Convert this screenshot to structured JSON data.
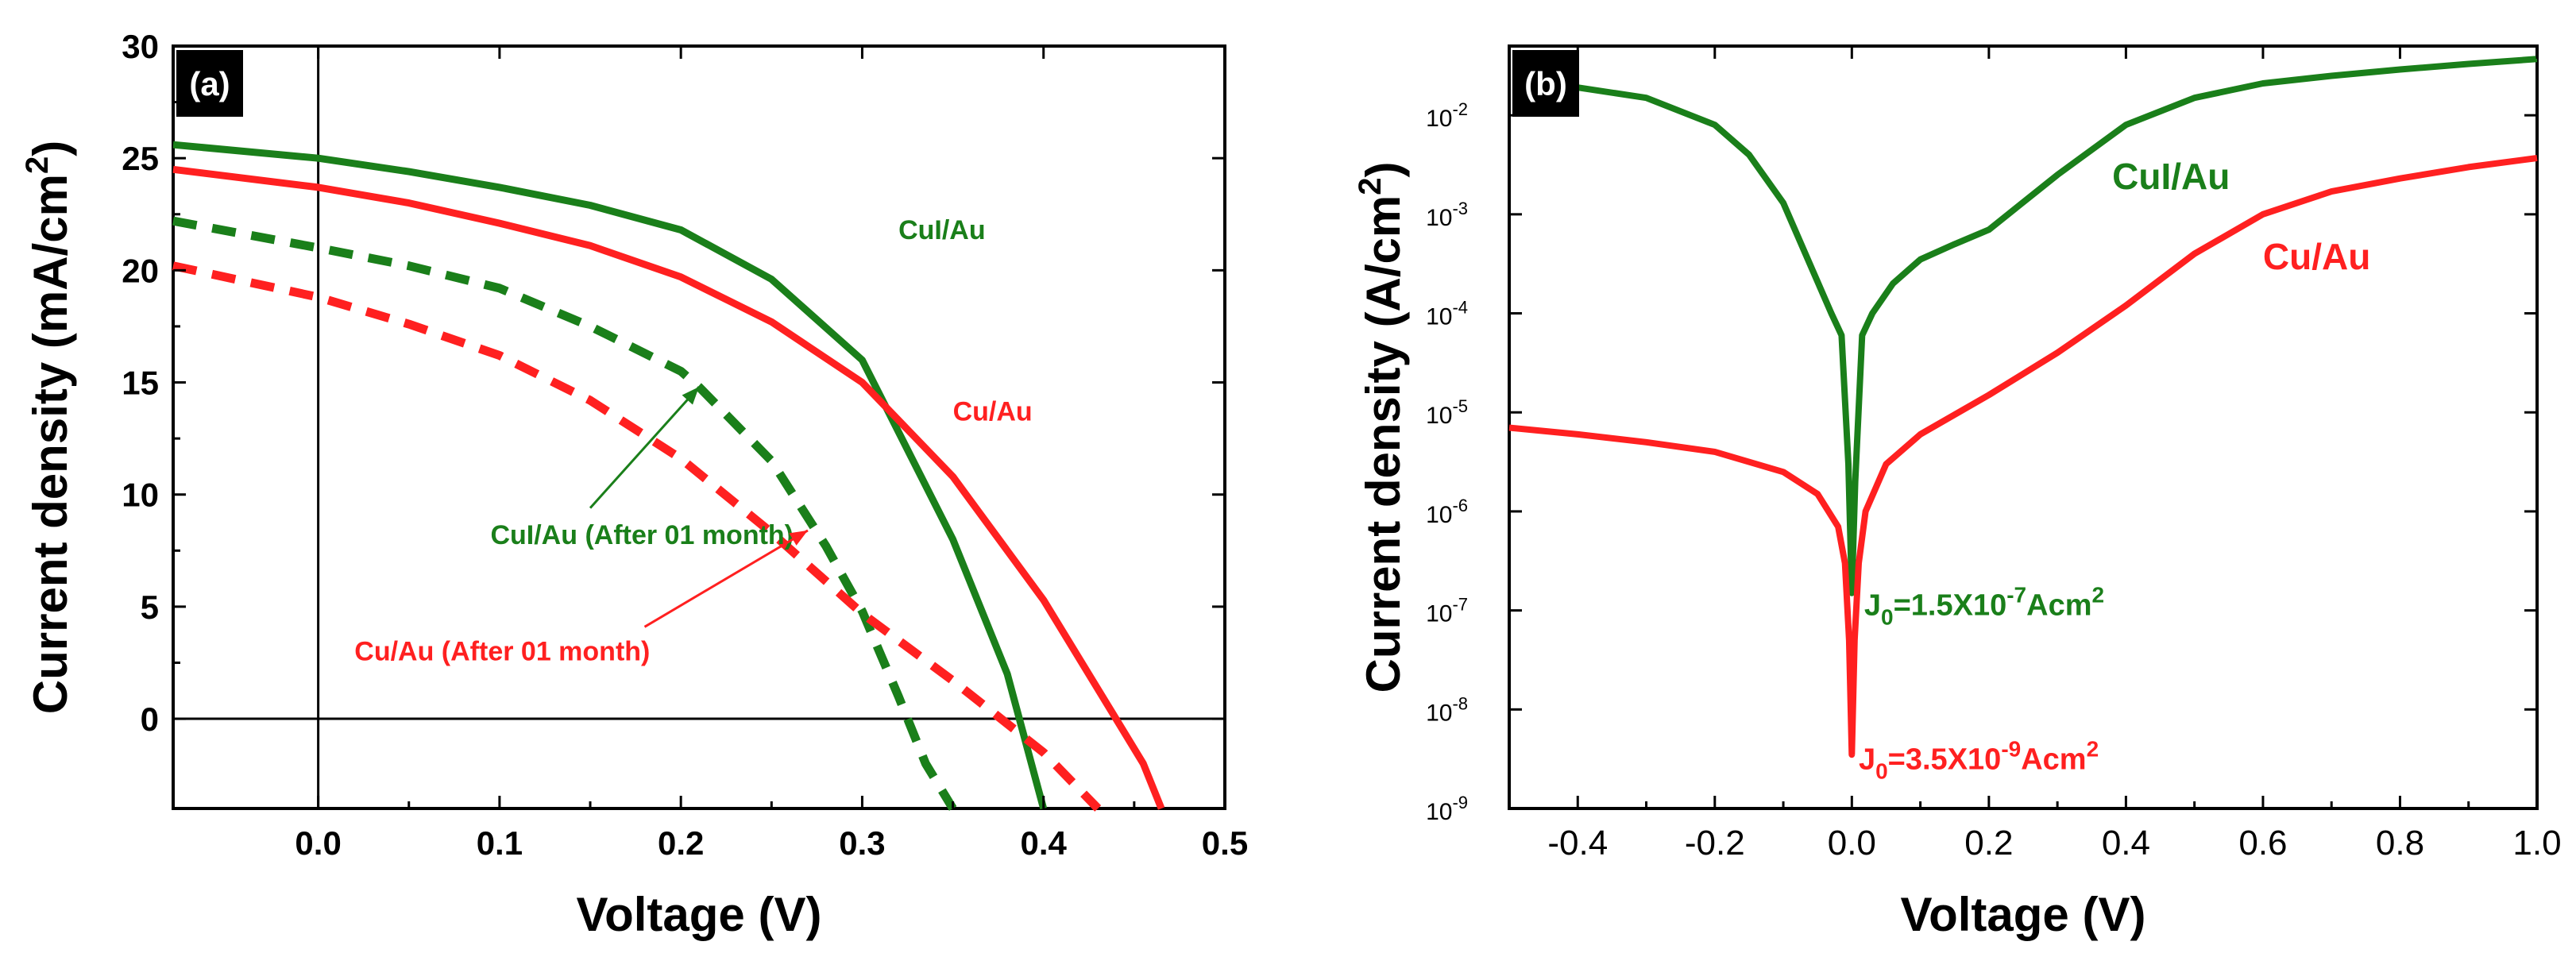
{
  "chart_data": [
    {
      "panel": "(a)",
      "type": "line",
      "xlabel": "Voltage (V)",
      "ylabel_main": "Current density (mA/cm",
      "ylabel_sup": "2",
      "ylabel_tail": ")",
      "xlim": [
        -0.08,
        0.5
      ],
      "ylim": [
        -4,
        30
      ],
      "xticks": [
        0.0,
        0.1,
        0.2,
        0.3,
        0.4,
        0.5
      ],
      "xtick_labels": [
        "0.0",
        "0.1",
        "0.2",
        "0.3",
        "0.4",
        "0.5"
      ],
      "yticks": [
        0,
        5,
        10,
        15,
        20,
        25,
        30
      ],
      "ytick_labels": [
        "0",
        "5",
        "10",
        "15",
        "20",
        "25",
        "30"
      ],
      "reference_lines": {
        "x0": 0,
        "y0": 0
      },
      "series": [
        {
          "name": "CuI/Au",
          "color": "#1a7f1a",
          "dashed": false,
          "x": [
            -0.08,
            0.0,
            0.05,
            0.1,
            0.15,
            0.2,
            0.25,
            0.3,
            0.35,
            0.38,
            0.4
          ],
          "y": [
            25.6,
            25.0,
            24.4,
            23.7,
            22.9,
            21.8,
            19.6,
            16.0,
            8.0,
            2.0,
            -4.0
          ]
        },
        {
          "name": "Cu/Au",
          "color": "#ff2020",
          "dashed": false,
          "x": [
            -0.08,
            0.0,
            0.05,
            0.1,
            0.15,
            0.2,
            0.25,
            0.3,
            0.35,
            0.4,
            0.44,
            0.455,
            0.465
          ],
          "y": [
            24.5,
            23.7,
            23.0,
            22.1,
            21.1,
            19.7,
            17.7,
            15.0,
            10.8,
            5.3,
            0.0,
            -2.0,
            -4.0
          ]
        },
        {
          "name": "CuI/Au (After 01 month)",
          "color": "#1a7f1a",
          "dashed": true,
          "x": [
            -0.08,
            0.0,
            0.05,
            0.1,
            0.15,
            0.2,
            0.21,
            0.25,
            0.28,
            0.3,
            0.32,
            0.335,
            0.35
          ],
          "y": [
            22.2,
            21.0,
            20.2,
            19.2,
            17.5,
            15.5,
            14.8,
            11.5,
            7.7,
            4.8,
            1.0,
            -2.0,
            -4.0
          ]
        },
        {
          "name": "Cu/Au (After 01 month)",
          "color": "#ff2020",
          "dashed": true,
          "x": [
            -0.08,
            0.0,
            0.05,
            0.1,
            0.15,
            0.2,
            0.25,
            0.3,
            0.35,
            0.4,
            0.43
          ],
          "y": [
            20.2,
            18.8,
            17.6,
            16.2,
            14.2,
            11.6,
            8.3,
            4.7,
            1.7,
            -1.5,
            -4.0
          ]
        }
      ],
      "annotations": [
        {
          "text": "CuI/Au",
          "color": "#1a7f1a",
          "at": [
            0.32,
            21.4
          ]
        },
        {
          "text": "Cu/Au",
          "color": "#ff2020",
          "at": [
            0.35,
            13.3
          ]
        },
        {
          "text": "CuI/Au (After 01 month)",
          "color": "#1a7f1a",
          "at": [
            0.095,
            7.8
          ],
          "arrow_from": [
            0.15,
            9.4
          ],
          "arrow_to": [
            0.21,
            14.8
          ]
        },
        {
          "text": "Cu/Au (After 01 month)",
          "color": "#ff2020",
          "at": [
            0.02,
            2.6
          ],
          "arrow_from": [
            0.18,
            4.1
          ],
          "arrow_to": [
            0.27,
            8.4
          ]
        }
      ]
    },
    {
      "panel": "(b)",
      "type": "line",
      "yscale": "log",
      "xlabel": "Voltage (V)",
      "ylabel_main": "Current density (A/cm",
      "ylabel_sup": "2",
      "ylabel_tail": ")",
      "xlim": [
        -0.5,
        1.0
      ],
      "ylim": [
        1e-09,
        0.05
      ],
      "xticks": [
        -0.4,
        -0.2,
        0.0,
        0.2,
        0.4,
        0.6,
        0.8,
        1.0
      ],
      "xtick_labels": [
        "-0.4",
        "-0.2",
        "0.0",
        "0.2",
        "0.4",
        "0.6",
        "0.8",
        "1.0"
      ],
      "yticks": [
        1e-09,
        1e-08,
        1e-07,
        1e-06,
        1e-05,
        0.0001,
        0.001,
        0.01
      ],
      "ytick_labels": [
        {
          "base": "10",
          "exp": "-9"
        },
        {
          "base": "10",
          "exp": "-8"
        },
        {
          "base": "10",
          "exp": "-7"
        },
        {
          "base": "10",
          "exp": "-6"
        },
        {
          "base": "10",
          "exp": "-5"
        },
        {
          "base": "10",
          "exp": "-4"
        },
        {
          "base": "10",
          "exp": "-3"
        },
        {
          "base": "10",
          "exp": "-2"
        }
      ],
      "series": [
        {
          "name": "CuI/Au",
          "color": "#1a7f1a",
          "x": [
            -0.42,
            -0.3,
            -0.2,
            -0.15,
            -0.1,
            -0.06,
            -0.03,
            -0.015,
            -0.005,
            0.0,
            0.005,
            0.015,
            0.03,
            0.06,
            0.1,
            0.15,
            0.2,
            0.3,
            0.4,
            0.5,
            0.6,
            0.7,
            0.8,
            0.9,
            1.0
          ],
          "y": [
            0.02,
            0.015,
            0.008,
            0.004,
            0.0013,
            0.0003,
            0.0001,
            6e-05,
            3e-06,
            1.5e-07,
            2e-06,
            6e-05,
            0.0001,
            0.0002,
            0.00035,
            0.0005,
            0.0007,
            0.0025,
            0.008,
            0.015,
            0.021,
            0.025,
            0.029,
            0.033,
            0.037
          ]
        },
        {
          "name": "Cu/Au",
          "color": "#ff2020",
          "x": [
            -0.5,
            -0.4,
            -0.3,
            -0.2,
            -0.1,
            -0.05,
            -0.02,
            -0.01,
            -0.004,
            0.0,
            0.004,
            0.01,
            0.02,
            0.05,
            0.1,
            0.2,
            0.3,
            0.4,
            0.5,
            0.6,
            0.7,
            0.8,
            0.9,
            1.0
          ],
          "y": [
            7e-06,
            6e-06,
            5e-06,
            4e-06,
            2.5e-06,
            1.5e-06,
            7e-07,
            3e-07,
            5e-08,
            3.5e-09,
            5e-08,
            3e-07,
            1e-06,
            3e-06,
            6e-06,
            1.5e-05,
            4e-05,
            0.00012,
            0.0004,
            0.001,
            0.0017,
            0.0023,
            0.003,
            0.0037
          ]
        }
      ],
      "annotations": [
        {
          "text": "CuI/Au",
          "color": "#1a7f1a",
          "at": [
            0.38,
            0.0018
          ]
        },
        {
          "text": "Cu/Au",
          "color": "#ff2020",
          "at": [
            0.6,
            0.00028
          ]
        },
        {
          "sub": "0",
          "prefix": "J",
          "middle": "=1.5X10",
          "exp": "-7",
          "tail": "Acm",
          "exp2": "2",
          "color": "#1a7f1a",
          "at": [
            0.018,
            9e-08
          ]
        },
        {
          "sub": "0",
          "prefix": "J",
          "middle": "=3.5X10",
          "exp": "-9",
          "tail": "Acm",
          "exp2": "2",
          "color": "#ff2020",
          "at": [
            0.01,
            2.5e-09
          ]
        }
      ]
    }
  ]
}
